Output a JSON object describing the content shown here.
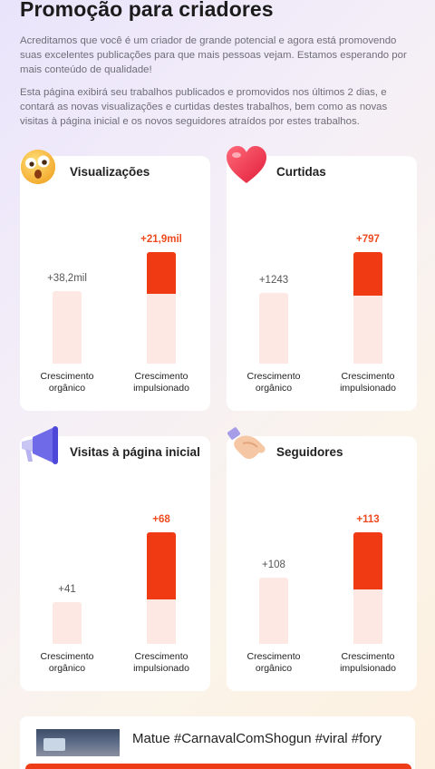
{
  "header": {
    "title": "Promoção para criadores",
    "desc1": "Acreditamos que você é um criador de grande potencial e agora está promovendo suas excelentes publicações para que mais pessoas vejam. Estamos esperando por mais conteúdo de qualidade!",
    "desc2": "Esta página exibirá seu trabalhos publicados e promovidos nos últimos 2 dias, e contará as novas visualizações e curtidas destes trabalhos, bem como as novas visitas à página inicial e os novos seguidores atraídos por estes trabalhos."
  },
  "labels": {
    "organic": "Crescimento orgânico",
    "boosted": "Crescimento impulsionado"
  },
  "cards": [
    {
      "title": "Visualizações",
      "icon": "surprised-face-icon",
      "organic": "+38,2mil",
      "boosted": "+21,9mil",
      "organic_level": 0.64,
      "boosted_level": 0.98,
      "boosted_red_fraction": 0.37
    },
    {
      "title": "Curtidas",
      "icon": "heart-icon",
      "organic": "+1243",
      "boosted": "+797",
      "organic_level": 0.62,
      "boosted_level": 0.98,
      "boosted_red_fraction": 0.39
    },
    {
      "title": "Visitas à página inicial",
      "icon": "megaphone-icon",
      "organic": "+41",
      "boosted": "+68",
      "organic_level": 0.37,
      "boosted_level": 0.98,
      "boosted_red_fraction": 0.6
    },
    {
      "title": "Seguidores",
      "icon": "handshake-icon",
      "organic": "+108",
      "boosted": "+113",
      "organic_level": 0.58,
      "boosted_level": 0.98,
      "boosted_red_fraction": 0.51
    }
  ],
  "video": {
    "title": "Matue #CarnavalComShogun #viral #fory"
  },
  "colors": {
    "accent": "#ef3a13",
    "bar_light": "#fde8e3"
  }
}
